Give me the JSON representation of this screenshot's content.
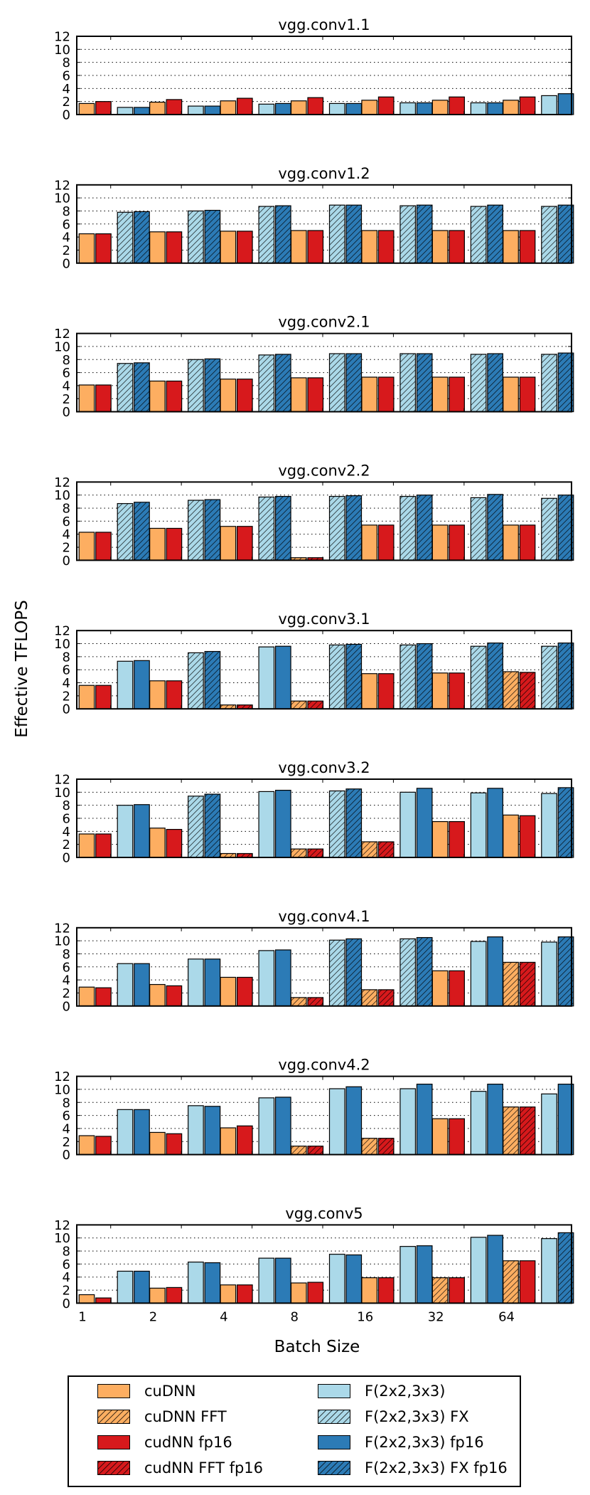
{
  "chart_data": {
    "type": "bar",
    "ylabel": "Effective TFLOPS",
    "xlabel": "Batch Size",
    "categories": [
      "1",
      "2",
      "4",
      "8",
      "16",
      "32",
      "64"
    ],
    "ylim": [
      0,
      12
    ],
    "yticks": [
      "0",
      "2",
      "4",
      "6",
      "8",
      "10",
      "12"
    ],
    "grid": true,
    "legend_position": "bottom",
    "series": [
      {
        "name": "cuDNN",
        "color": "#fdae61",
        "hatched": false
      },
      {
        "name": "cuDNN FFT",
        "color": "#fdae61",
        "hatched": true
      },
      {
        "name": "cudNN fp16",
        "color": "#d7191c",
        "hatched": false
      },
      {
        "name": "cudNN FFT fp16",
        "color": "#d7191c",
        "hatched": true
      },
      {
        "name": "F(2x2,3x3)",
        "color": "#abd9e9",
        "hatched": false
      },
      {
        "name": "F(2x2,3x3) FX",
        "color": "#abd9e9",
        "hatched": true
      },
      {
        "name": "F(2x2,3x3) fp16",
        "color": "#2c7bb6",
        "hatched": false
      },
      {
        "name": "F(2x2,3x3) FX fp16",
        "color": "#2c7bb6",
        "hatched": true
      }
    ],
    "subplots": [
      {
        "title": "vgg.conv1.1",
        "groups": [
          {
            "cudnn": 1.7,
            "cudnn_fft": false,
            "fp16": 2.0,
            "fp16_fft": false,
            "f": 1.1,
            "f_fx": false,
            "ffp16": 1.1,
            "ffp16_fx": false
          },
          {
            "cudnn": 1.9,
            "cudnn_fft": false,
            "fp16": 2.3,
            "fp16_fft": false,
            "f": 1.3,
            "f_fx": false,
            "ffp16": 1.3,
            "ffp16_fx": false
          },
          {
            "cudnn": 2.1,
            "cudnn_fft": false,
            "fp16": 2.5,
            "fp16_fft": false,
            "f": 1.6,
            "f_fx": false,
            "ffp16": 1.7,
            "ffp16_fx": false
          },
          {
            "cudnn": 2.1,
            "cudnn_fft": false,
            "fp16": 2.6,
            "fp16_fft": false,
            "f": 1.7,
            "f_fx": false,
            "ffp16": 1.7,
            "ffp16_fx": false
          },
          {
            "cudnn": 2.2,
            "cudnn_fft": false,
            "fp16": 2.7,
            "fp16_fft": false,
            "f": 1.8,
            "f_fx": false,
            "ffp16": 1.8,
            "ffp16_fx": false
          },
          {
            "cudnn": 2.2,
            "cudnn_fft": false,
            "fp16": 2.7,
            "fp16_fft": false,
            "f": 1.8,
            "f_fx": false,
            "ffp16": 1.8,
            "ffp16_fx": false
          },
          {
            "cudnn": 2.2,
            "cudnn_fft": false,
            "fp16": 2.7,
            "fp16_fft": false,
            "f": 2.9,
            "f_fx": false,
            "ffp16": 3.2,
            "ffp16_fx": false
          }
        ]
      },
      {
        "title": "vgg.conv1.2",
        "groups": [
          {
            "cudnn": 4.5,
            "cudnn_fft": false,
            "fp16": 4.5,
            "fp16_fft": false,
            "f": 7.8,
            "f_fx": true,
            "ffp16": 7.9,
            "ffp16_fx": true
          },
          {
            "cudnn": 4.8,
            "cudnn_fft": false,
            "fp16": 4.8,
            "fp16_fft": false,
            "f": 8.0,
            "f_fx": true,
            "ffp16": 8.1,
            "ffp16_fx": true
          },
          {
            "cudnn": 4.9,
            "cudnn_fft": false,
            "fp16": 4.9,
            "fp16_fft": false,
            "f": 8.7,
            "f_fx": true,
            "ffp16": 8.8,
            "ffp16_fx": true
          },
          {
            "cudnn": 5.0,
            "cudnn_fft": false,
            "fp16": 5.0,
            "fp16_fft": false,
            "f": 8.9,
            "f_fx": true,
            "ffp16": 8.9,
            "ffp16_fx": true
          },
          {
            "cudnn": 5.0,
            "cudnn_fft": false,
            "fp16": 5.0,
            "fp16_fft": false,
            "f": 8.8,
            "f_fx": true,
            "ffp16": 8.9,
            "ffp16_fx": true
          },
          {
            "cudnn": 5.0,
            "cudnn_fft": false,
            "fp16": 5.0,
            "fp16_fft": false,
            "f": 8.7,
            "f_fx": true,
            "ffp16": 8.9,
            "ffp16_fx": true
          },
          {
            "cudnn": 5.0,
            "cudnn_fft": false,
            "fp16": 5.0,
            "fp16_fft": false,
            "f": 8.7,
            "f_fx": true,
            "ffp16": 8.9,
            "ffp16_fx": true
          }
        ]
      },
      {
        "title": "vgg.conv2.1",
        "groups": [
          {
            "cudnn": 4.1,
            "cudnn_fft": false,
            "fp16": 4.1,
            "fp16_fft": false,
            "f": 7.4,
            "f_fx": true,
            "ffp16": 7.5,
            "ffp16_fx": true
          },
          {
            "cudnn": 4.7,
            "cudnn_fft": false,
            "fp16": 4.7,
            "fp16_fft": false,
            "f": 8.0,
            "f_fx": true,
            "ffp16": 8.1,
            "ffp16_fx": true
          },
          {
            "cudnn": 5.0,
            "cudnn_fft": false,
            "fp16": 5.0,
            "fp16_fft": false,
            "f": 8.7,
            "f_fx": true,
            "ffp16": 8.8,
            "ffp16_fx": true
          },
          {
            "cudnn": 5.2,
            "cudnn_fft": false,
            "fp16": 5.2,
            "fp16_fft": false,
            "f": 8.9,
            "f_fx": true,
            "ffp16": 8.9,
            "ffp16_fx": true
          },
          {
            "cudnn": 5.3,
            "cudnn_fft": false,
            "fp16": 5.3,
            "fp16_fft": false,
            "f": 8.9,
            "f_fx": true,
            "ffp16": 8.9,
            "ffp16_fx": true
          },
          {
            "cudnn": 5.3,
            "cudnn_fft": false,
            "fp16": 5.3,
            "fp16_fft": false,
            "f": 8.8,
            "f_fx": true,
            "ffp16": 8.9,
            "ffp16_fx": true
          },
          {
            "cudnn": 5.3,
            "cudnn_fft": false,
            "fp16": 5.3,
            "fp16_fft": false,
            "f": 8.8,
            "f_fx": true,
            "ffp16": 9.0,
            "ffp16_fx": true
          }
        ]
      },
      {
        "title": "vgg.conv2.2",
        "groups": [
          {
            "cudnn": 4.3,
            "cudnn_fft": false,
            "fp16": 4.3,
            "fp16_fft": false,
            "f": 8.7,
            "f_fx": true,
            "ffp16": 8.9,
            "ffp16_fx": true
          },
          {
            "cudnn": 4.9,
            "cudnn_fft": false,
            "fp16": 4.9,
            "fp16_fft": false,
            "f": 9.2,
            "f_fx": true,
            "ffp16": 9.3,
            "ffp16_fx": true
          },
          {
            "cudnn": 5.2,
            "cudnn_fft": false,
            "fp16": 5.2,
            "fp16_fft": false,
            "f": 9.7,
            "f_fx": true,
            "ffp16": 9.8,
            "ffp16_fx": true
          },
          {
            "cudnn": 0.4,
            "cudnn_fft": true,
            "fp16": 0.4,
            "fp16_fft": true,
            "f": 9.8,
            "f_fx": true,
            "ffp16": 9.9,
            "ffp16_fx": true
          },
          {
            "cudnn": 5.4,
            "cudnn_fft": false,
            "fp16": 5.4,
            "fp16_fft": false,
            "f": 9.8,
            "f_fx": true,
            "ffp16": 10.0,
            "ffp16_fx": true
          },
          {
            "cudnn": 5.4,
            "cudnn_fft": false,
            "fp16": 5.4,
            "fp16_fft": false,
            "f": 9.6,
            "f_fx": true,
            "ffp16": 10.1,
            "ffp16_fx": true
          },
          {
            "cudnn": 5.4,
            "cudnn_fft": false,
            "fp16": 5.4,
            "fp16_fft": false,
            "f": 9.5,
            "f_fx": true,
            "ffp16": 10.0,
            "ffp16_fx": true
          }
        ]
      },
      {
        "title": "vgg.conv3.1",
        "groups": [
          {
            "cudnn": 3.6,
            "cudnn_fft": false,
            "fp16": 3.6,
            "fp16_fft": false,
            "f": 7.3,
            "f_fx": false,
            "ffp16": 7.4,
            "ffp16_fx": false
          },
          {
            "cudnn": 4.3,
            "cudnn_fft": false,
            "fp16": 4.3,
            "fp16_fft": false,
            "f": 8.6,
            "f_fx": true,
            "ffp16": 8.8,
            "ffp16_fx": true
          },
          {
            "cudnn": 0.6,
            "cudnn_fft": true,
            "fp16": 0.6,
            "fp16_fft": true,
            "f": 9.5,
            "f_fx": false,
            "ffp16": 9.6,
            "ffp16_fx": false
          },
          {
            "cudnn": 1.2,
            "cudnn_fft": true,
            "fp16": 1.2,
            "fp16_fft": true,
            "f": 9.8,
            "f_fx": true,
            "ffp16": 9.9,
            "ffp16_fx": true
          },
          {
            "cudnn": 5.4,
            "cudnn_fft": false,
            "fp16": 5.4,
            "fp16_fft": false,
            "f": 9.8,
            "f_fx": true,
            "ffp16": 10.0,
            "ffp16_fx": true
          },
          {
            "cudnn": 5.5,
            "cudnn_fft": false,
            "fp16": 5.5,
            "fp16_fft": false,
            "f": 9.6,
            "f_fx": true,
            "ffp16": 10.1,
            "ffp16_fx": true
          },
          {
            "cudnn": 5.7,
            "cudnn_fft": true,
            "fp16": 5.6,
            "fp16_fft": true,
            "f": 9.6,
            "f_fx": true,
            "ffp16": 10.1,
            "ffp16_fx": true
          }
        ]
      },
      {
        "title": "vgg.conv3.2",
        "groups": [
          {
            "cudnn": 3.6,
            "cudnn_fft": false,
            "fp16": 3.6,
            "fp16_fft": false,
            "f": 8.0,
            "f_fx": false,
            "ffp16": 8.1,
            "ffp16_fx": false
          },
          {
            "cudnn": 4.5,
            "cudnn_fft": false,
            "fp16": 4.3,
            "fp16_fft": false,
            "f": 9.4,
            "f_fx": true,
            "ffp16": 9.7,
            "ffp16_fx": true
          },
          {
            "cudnn": 0.6,
            "cudnn_fft": true,
            "fp16": 0.6,
            "fp16_fft": true,
            "f": 10.1,
            "f_fx": false,
            "ffp16": 10.3,
            "ffp16_fx": false
          },
          {
            "cudnn": 1.3,
            "cudnn_fft": true,
            "fp16": 1.3,
            "fp16_fft": true,
            "f": 10.2,
            "f_fx": true,
            "ffp16": 10.5,
            "ffp16_fx": true
          },
          {
            "cudnn": 2.4,
            "cudnn_fft": true,
            "fp16": 2.4,
            "fp16_fft": true,
            "f": 10.0,
            "f_fx": false,
            "ffp16": 10.6,
            "ffp16_fx": false
          },
          {
            "cudnn": 5.5,
            "cudnn_fft": false,
            "fp16": 5.5,
            "fp16_fft": false,
            "f": 9.9,
            "f_fx": false,
            "ffp16": 10.6,
            "ffp16_fx": false
          },
          {
            "cudnn": 6.5,
            "cudnn_fft": false,
            "fp16": 6.4,
            "fp16_fft": false,
            "f": 9.8,
            "f_fx": false,
            "ffp16": 10.7,
            "ffp16_fx": true
          }
        ]
      },
      {
        "title": "vgg.conv4.1",
        "groups": [
          {
            "cudnn": 2.9,
            "cudnn_fft": false,
            "fp16": 2.8,
            "fp16_fft": false,
            "f": 6.5,
            "f_fx": false,
            "ffp16": 6.5,
            "ffp16_fx": false
          },
          {
            "cudnn": 3.3,
            "cudnn_fft": false,
            "fp16": 3.1,
            "fp16_fft": false,
            "f": 7.2,
            "f_fx": false,
            "ffp16": 7.2,
            "ffp16_fx": false
          },
          {
            "cudnn": 4.4,
            "cudnn_fft": false,
            "fp16": 4.4,
            "fp16_fft": false,
            "f": 8.5,
            "f_fx": false,
            "ffp16": 8.6,
            "ffp16_fx": false
          },
          {
            "cudnn": 1.3,
            "cudnn_fft": true,
            "fp16": 1.3,
            "fp16_fft": true,
            "f": 10.1,
            "f_fx": true,
            "ffp16": 10.3,
            "ffp16_fx": true
          },
          {
            "cudnn": 2.5,
            "cudnn_fft": true,
            "fp16": 2.5,
            "fp16_fft": true,
            "f": 10.3,
            "f_fx": true,
            "ffp16": 10.5,
            "ffp16_fx": true
          },
          {
            "cudnn": 5.4,
            "cudnn_fft": false,
            "fp16": 5.4,
            "fp16_fft": false,
            "f": 9.9,
            "f_fx": false,
            "ffp16": 10.6,
            "ffp16_fx": false
          },
          {
            "cudnn": 6.7,
            "cudnn_fft": true,
            "fp16": 6.7,
            "fp16_fft": true,
            "f": 9.8,
            "f_fx": false,
            "ffp16": 10.6,
            "ffp16_fx": true
          }
        ]
      },
      {
        "title": "vgg.conv4.2",
        "groups": [
          {
            "cudnn": 2.9,
            "cudnn_fft": false,
            "fp16": 2.8,
            "fp16_fft": false,
            "f": 6.9,
            "f_fx": false,
            "ffp16": 6.9,
            "ffp16_fx": false
          },
          {
            "cudnn": 3.4,
            "cudnn_fft": false,
            "fp16": 3.2,
            "fp16_fft": false,
            "f": 7.5,
            "f_fx": false,
            "ffp16": 7.4,
            "ffp16_fx": false
          },
          {
            "cudnn": 4.1,
            "cudnn_fft": false,
            "fp16": 4.4,
            "fp16_fft": false,
            "f": 8.7,
            "f_fx": false,
            "ffp16": 8.8,
            "ffp16_fx": false
          },
          {
            "cudnn": 1.3,
            "cudnn_fft": true,
            "fp16": 1.3,
            "fp16_fft": true,
            "f": 10.1,
            "f_fx": false,
            "ffp16": 10.4,
            "ffp16_fx": false
          },
          {
            "cudnn": 2.5,
            "cudnn_fft": true,
            "fp16": 2.5,
            "fp16_fft": true,
            "f": 10.1,
            "f_fx": false,
            "ffp16": 10.8,
            "ffp16_fx": false
          },
          {
            "cudnn": 5.5,
            "cudnn_fft": false,
            "fp16": 5.5,
            "fp16_fft": false,
            "f": 9.7,
            "f_fx": false,
            "ffp16": 10.8,
            "ffp16_fx": false
          },
          {
            "cudnn": 7.3,
            "cudnn_fft": true,
            "fp16": 7.3,
            "fp16_fft": true,
            "f": 9.3,
            "f_fx": false,
            "ffp16": 10.8,
            "ffp16_fx": false
          }
        ]
      },
      {
        "title": "vgg.conv5",
        "groups": [
          {
            "cudnn": 1.3,
            "cudnn_fft": false,
            "fp16": 0.8,
            "fp16_fft": false,
            "f": 4.9,
            "f_fx": false,
            "ffp16": 4.9,
            "ffp16_fx": false
          },
          {
            "cudnn": 2.3,
            "cudnn_fft": false,
            "fp16": 2.4,
            "fp16_fft": false,
            "f": 6.3,
            "f_fx": false,
            "ffp16": 6.2,
            "ffp16_fx": false
          },
          {
            "cudnn": 2.8,
            "cudnn_fft": false,
            "fp16": 2.8,
            "fp16_fft": false,
            "f": 6.9,
            "f_fx": false,
            "ffp16": 6.9,
            "ffp16_fx": false
          },
          {
            "cudnn": 3.1,
            "cudnn_fft": false,
            "fp16": 3.2,
            "fp16_fft": false,
            "f": 7.5,
            "f_fx": false,
            "ffp16": 7.4,
            "ffp16_fx": false
          },
          {
            "cudnn": 3.9,
            "cudnn_fft": false,
            "fp16": 3.9,
            "fp16_fft": false,
            "f": 8.7,
            "f_fx": false,
            "ffp16": 8.8,
            "ffp16_fx": false
          },
          {
            "cudnn": 3.9,
            "cudnn_fft": true,
            "fp16": 3.9,
            "fp16_fft": false,
            "f": 10.1,
            "f_fx": false,
            "ffp16": 10.4,
            "ffp16_fx": false
          },
          {
            "cudnn": 6.5,
            "cudnn_fft": true,
            "fp16": 6.5,
            "fp16_fft": false,
            "f": 9.9,
            "f_fx": false,
            "ffp16": 10.8,
            "ffp16_fx": true
          }
        ]
      }
    ]
  }
}
